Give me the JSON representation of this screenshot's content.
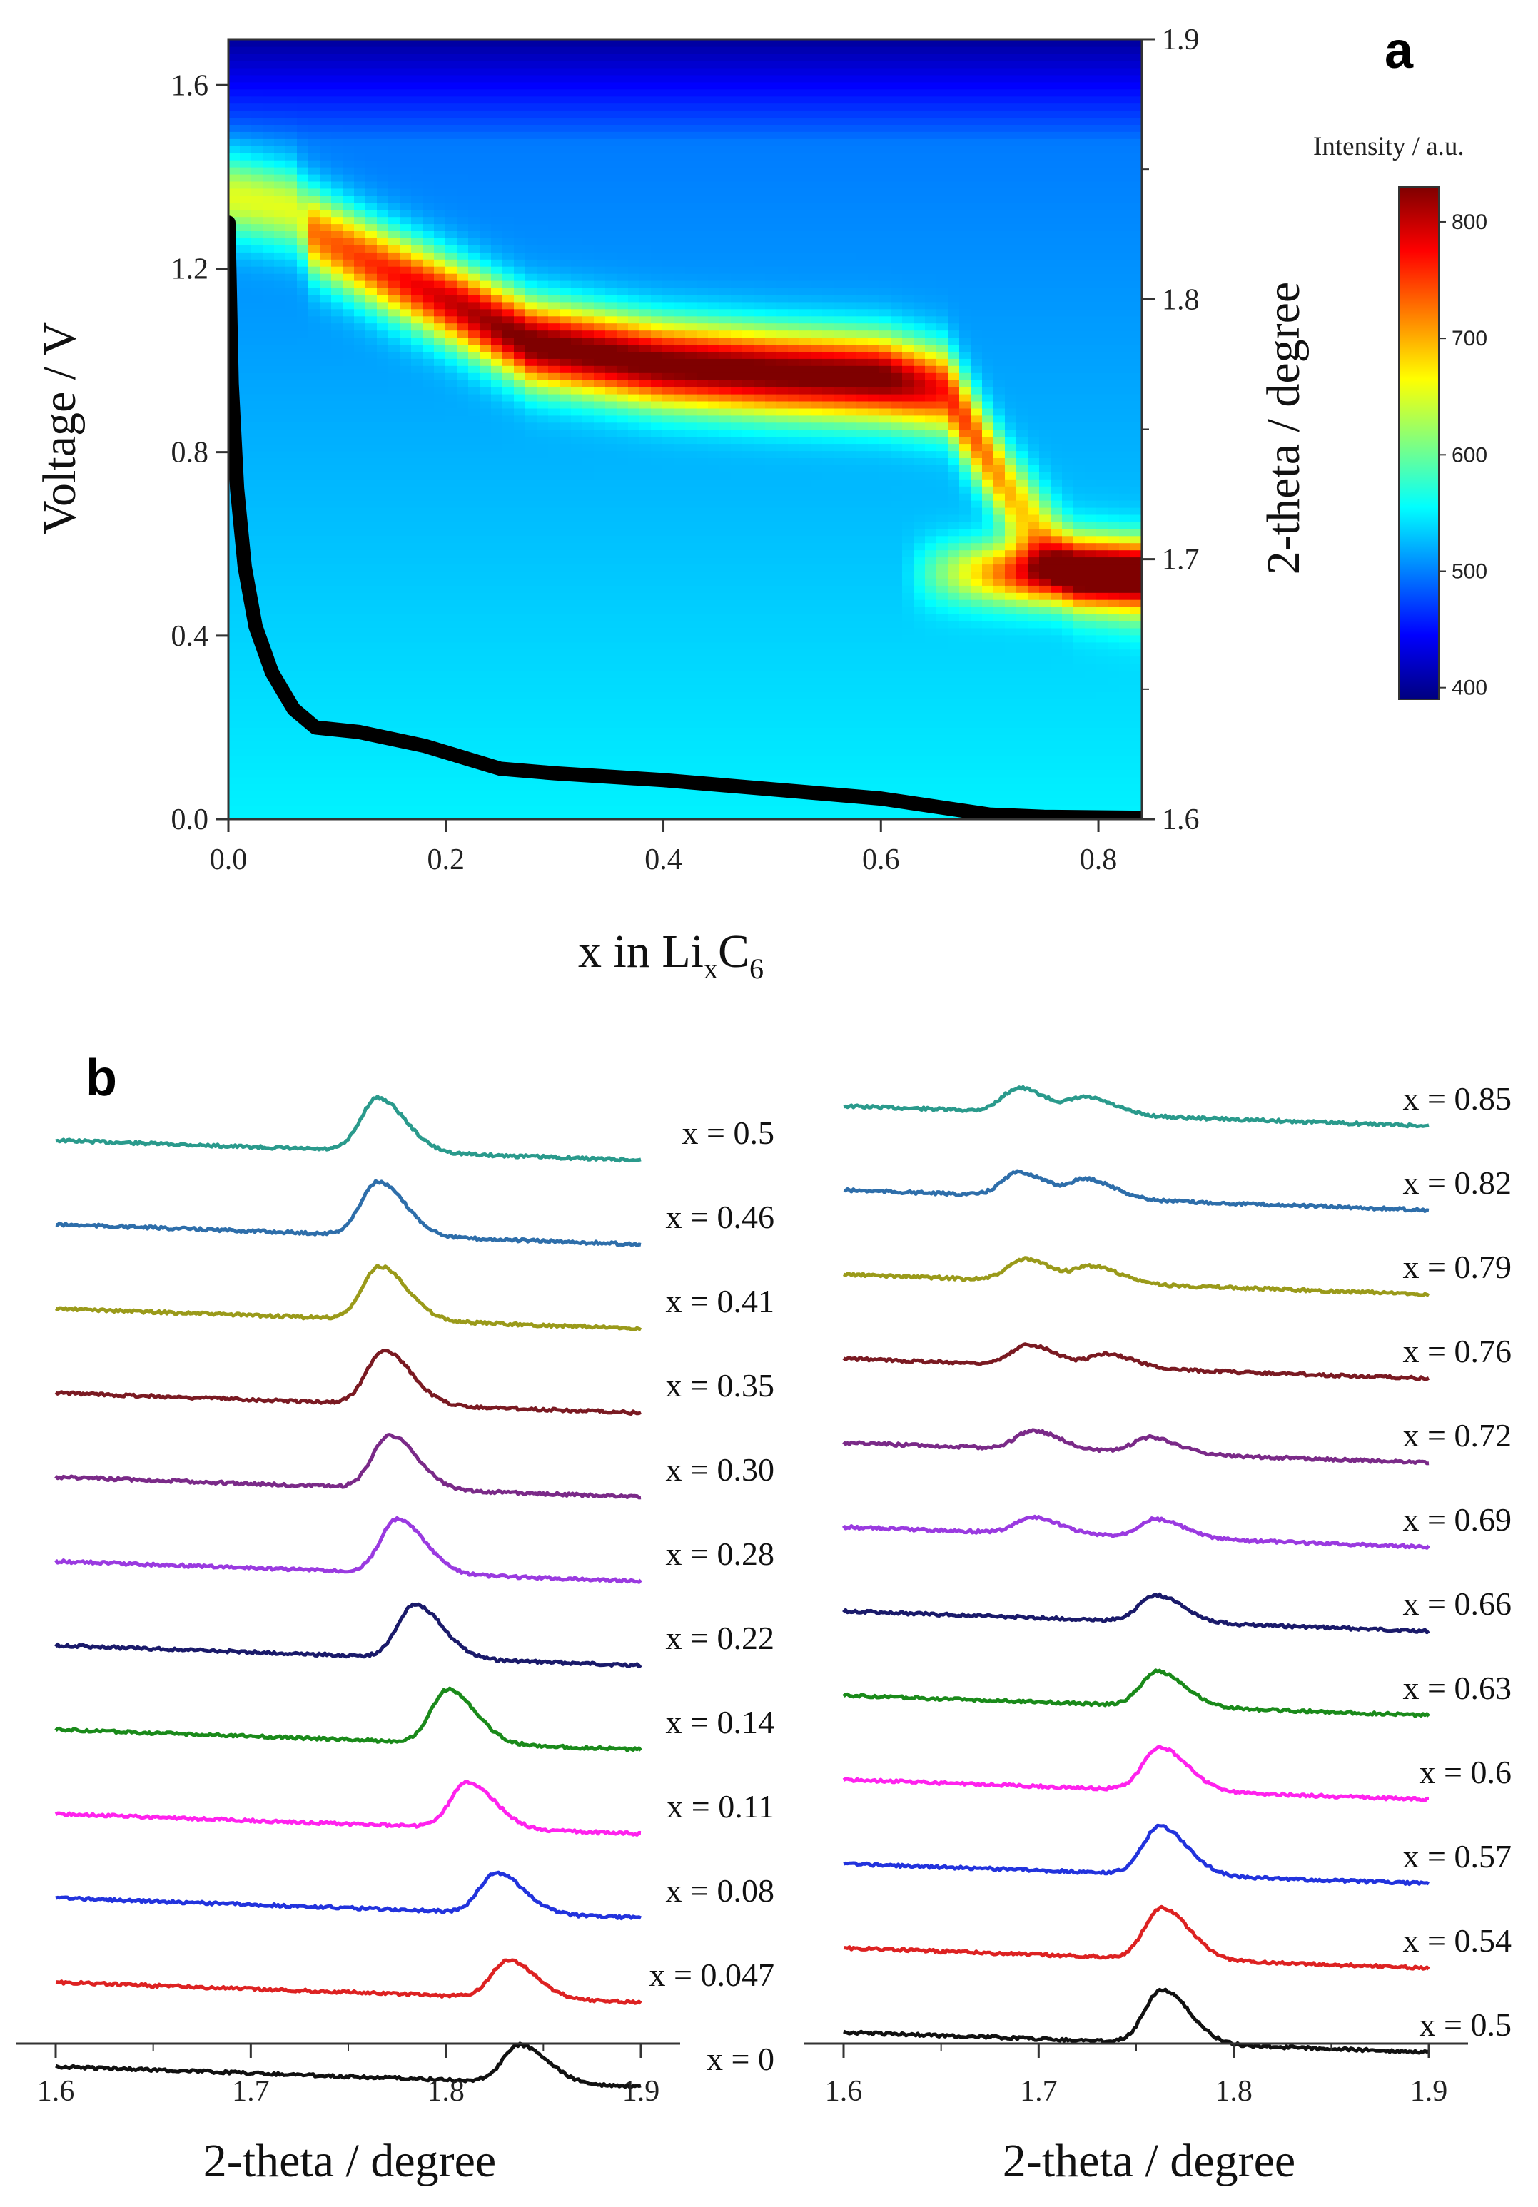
{
  "panel_a_label": "a",
  "panel_b_label": "b",
  "chart_data": [
    {
      "type": "heatmap",
      "panel": "a",
      "xlabel_main": "x in Li",
      "xlabel_sub1": "x",
      "xlabel_mid": "C",
      "xlabel_sub2": "6",
      "ylabel_left": "Voltage / V",
      "ylabel_right": "2-theta / degree",
      "x_ticks": [
        "0.0",
        "0.2",
        "0.4",
        "0.6",
        "0.8"
      ],
      "x_tick_values": [
        0.0,
        0.2,
        0.4,
        0.6,
        0.8
      ],
      "y_left_ticks": [
        "0.0",
        "0.4",
        "0.8",
        "1.2",
        "1.6"
      ],
      "y_left_tick_values": [
        0.0,
        0.4,
        0.8,
        1.2,
        1.6
      ],
      "y_right_ticks": [
        "1.6",
        "1.7",
        "1.8",
        "1.9"
      ],
      "y_right_tick_values": [
        1.6,
        1.7,
        1.8,
        1.9
      ],
      "xlim": [
        0.0,
        0.84
      ],
      "ylim_left": [
        0.0,
        1.7
      ],
      "ylim_right": [
        1.6,
        1.9
      ],
      "colorbar": {
        "title": "Intensity / a.u.",
        "ticks": [
          "400",
          "500",
          "600",
          "700",
          "800"
        ],
        "tick_values": [
          400,
          500,
          600,
          700,
          800
        ],
        "range": [
          390,
          830
        ],
        "colors": [
          "#00007f",
          "#0000ff",
          "#0080ff",
          "#00ffff",
          "#80ff80",
          "#ffff00",
          "#ff8000",
          "#ff0000",
          "#7f0000"
        ]
      },
      "peak_ridge": {
        "x": [
          0.0,
          0.06,
          0.08,
          0.15,
          0.2,
          0.28,
          0.4,
          0.5,
          0.6,
          0.66,
          0.72,
          0.78,
          0.84
        ],
        "two_theta": [
          1.84,
          1.835,
          1.825,
          1.81,
          1.8,
          1.783,
          1.775,
          1.772,
          1.77,
          1.765,
          1.725,
          1.695,
          1.69
        ]
      },
      "voltage_curve": {
        "x": [
          0.0,
          0.003,
          0.008,
          0.015,
          0.025,
          0.04,
          0.06,
          0.08,
          0.12,
          0.18,
          0.25,
          0.3,
          0.4,
          0.5,
          0.6,
          0.7,
          0.75,
          0.84
        ],
        "voltage": [
          1.3,
          0.95,
          0.72,
          0.55,
          0.42,
          0.32,
          0.24,
          0.2,
          0.19,
          0.16,
          0.11,
          0.1,
          0.085,
          0.065,
          0.045,
          0.01,
          0.005,
          0.003
        ]
      }
    },
    {
      "type": "line",
      "panel": "b-left",
      "xlabel": "2-theta / degree",
      "x_ticks": [
        "1.6",
        "1.7",
        "1.8",
        "1.9"
      ],
      "x_tick_values": [
        1.6,
        1.7,
        1.8,
        1.9
      ],
      "xlim": [
        1.6,
        1.9
      ],
      "series": [
        {
          "name": "x = 0.5",
          "color": "#2a9a8c",
          "peaks": [
            [
              1.765,
              1.0
            ]
          ]
        },
        {
          "name": "x = 0.46",
          "color": "#2e6eaa",
          "peaks": [
            [
              1.765,
              1.0
            ]
          ]
        },
        {
          "name": "x = 0.41",
          "color": "#9a9a1a",
          "peaks": [
            [
              1.766,
              1.0
            ]
          ]
        },
        {
          "name": "x = 0.35",
          "color": "#7a1a22",
          "peaks": [
            [
              1.768,
              1.0
            ]
          ]
        },
        {
          "name": "x = 0.30",
          "color": "#7a2a88",
          "peaks": [
            [
              1.771,
              1.0
            ]
          ]
        },
        {
          "name": "x = 0.28",
          "color": "#9a3ae0",
          "peaks": [
            [
              1.775,
              1.0
            ]
          ]
        },
        {
          "name": "x = 0.22",
          "color": "#1a1a6a",
          "peaks": [
            [
              1.784,
              1.0
            ]
          ]
        },
        {
          "name": "x = 0.14",
          "color": "#1a8a1a",
          "peaks": [
            [
              1.801,
              1.0
            ]
          ]
        },
        {
          "name": "x = 0.11",
          "color": "#ff22ee",
          "peaks": [
            [
              1.811,
              0.85
            ]
          ]
        },
        {
          "name": "x = 0.08",
          "color": "#2233dd",
          "peaks": [
            [
              1.826,
              0.75
            ]
          ]
        },
        {
          "name": "x = 0.047",
          "color": "#dd2222",
          "peaks": [
            [
              1.832,
              0.7
            ]
          ]
        },
        {
          "name": "x = 0",
          "color": "#111111",
          "peaks": [
            [
              1.838,
              0.7
            ]
          ]
        }
      ]
    },
    {
      "type": "line",
      "panel": "b-right",
      "xlabel": "2-theta / degree",
      "x_ticks": [
        "1.6",
        "1.7",
        "1.8",
        "1.9"
      ],
      "x_tick_values": [
        1.6,
        1.7,
        1.8,
        1.9
      ],
      "xlim": [
        1.6,
        1.9
      ],
      "series": [
        {
          "name": "x = 0.85",
          "color": "#2a9a8c",
          "peaks": [
            [
              1.69,
              0.45
            ],
            [
              1.725,
              0.3
            ]
          ]
        },
        {
          "name": "x = 0.82",
          "color": "#2e6eaa",
          "peaks": [
            [
              1.69,
              0.45
            ],
            [
              1.725,
              0.35
            ]
          ]
        },
        {
          "name": "x = 0.79",
          "color": "#9a9a1a",
          "peaks": [
            [
              1.693,
              0.4
            ],
            [
              1.728,
              0.3
            ]
          ]
        },
        {
          "name": "x = 0.76",
          "color": "#7a1a22",
          "peaks": [
            [
              1.695,
              0.38
            ],
            [
              1.735,
              0.25
            ]
          ]
        },
        {
          "name": "x = 0.72",
          "color": "#7a2a88",
          "peaks": [
            [
              1.697,
              0.35
            ],
            [
              1.757,
              0.3
            ]
          ]
        },
        {
          "name": "x = 0.69",
          "color": "#9a3ae0",
          "peaks": [
            [
              1.697,
              0.3
            ],
            [
              1.76,
              0.35
            ]
          ]
        },
        {
          "name": "x = 0.66",
          "color": "#1a1a6a",
          "peaks": [
            [
              1.76,
              0.5
            ]
          ]
        },
        {
          "name": "x = 0.63",
          "color": "#1a8a1a",
          "peaks": [
            [
              1.761,
              0.65
            ]
          ]
        },
        {
          "name": "x = 0.6",
          "color": "#ff22ee",
          "peaks": [
            [
              1.762,
              0.8
            ]
          ]
        },
        {
          "name": "x = 0.57",
          "color": "#2233dd",
          "peaks": [
            [
              1.762,
              0.9
            ]
          ]
        },
        {
          "name": "x = 0.54",
          "color": "#dd2222",
          "peaks": [
            [
              1.763,
              0.95
            ]
          ]
        },
        {
          "name": "x = 0.5",
          "color": "#111111",
          "peaks": [
            [
              1.763,
              1.0
            ]
          ]
        }
      ]
    }
  ]
}
